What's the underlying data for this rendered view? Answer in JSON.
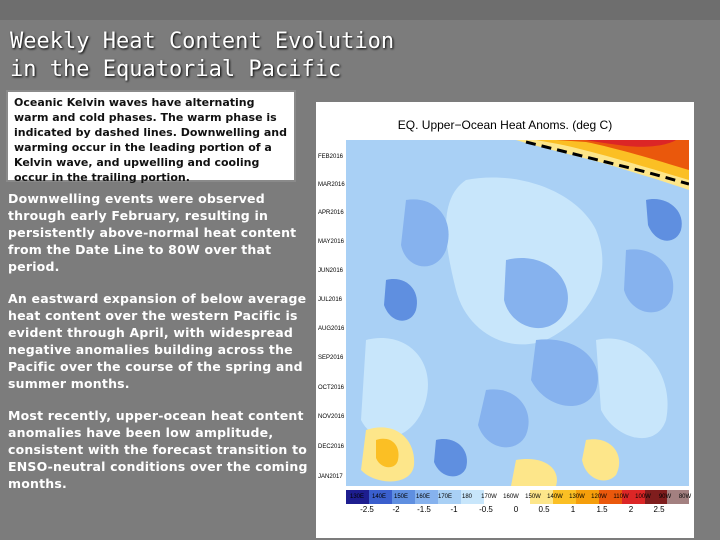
{
  "slide": {
    "title_line1": "Weekly Heat Content Evolution",
    "title_line2": "in the Equatorial Pacific",
    "note": "Oceanic Kelvin waves have alternating warm and cold phases. The warm phase is indicated by dashed lines. Downwelling and warming occur in the leading portion of a Kelvin wave, and upwelling and cooling occur in the trailing portion.",
    "paragraphs": [
      "Downwelling events were observed through early February, resulting in persistently above-normal heat content from the Date Line to 80W over that period.",
      "An eastward expansion of below average heat content over the western Pacific is evident through April, with widespread negative anomalies building across the Pacific over the course of the spring and summer months.",
      "Most recently, upper-ocean heat content anomalies have been low amplitude, consistent with the forecast transition to ENSO-neutral conditions over the coming months."
    ]
  },
  "figure": {
    "title": "EQ. Upper−Ocean Heat Anoms. (deg C)",
    "y_labels": [
      "FEB2016",
      "MAR2016",
      "APR2016",
      "MAY2016",
      "JUN2016",
      "JUL2016",
      "AUG2016",
      "SEP2016",
      "OCT2016",
      "NOV2016",
      "DEC2016",
      "JAN2017"
    ],
    "x_labels": [
      "130E",
      "140E",
      "150E",
      "160E",
      "170E",
      "180",
      "170W",
      "160W",
      "150W",
      "140W",
      "130W",
      "120W",
      "110W",
      "100W",
      "90W",
      "80W"
    ],
    "colorbar_ticks": [
      "-2.5",
      "-2",
      "-1.5",
      "-1",
      "-0.5",
      "0",
      "0.5",
      "1",
      "1.5",
      "2",
      "2.5"
    ],
    "colorbar_colors": [
      "#1d1d8f",
      "#3a5fcd",
      "#5f8fe0",
      "#86b2ee",
      "#a9d0f5",
      "#c8e6fb",
      "#ffffff",
      "#fde68a",
      "#fbbf24",
      "#f59e0b",
      "#ea580c",
      "#dc2626",
      "#b91c1c",
      "#7f1d1d",
      "#a38080"
    ]
  }
}
